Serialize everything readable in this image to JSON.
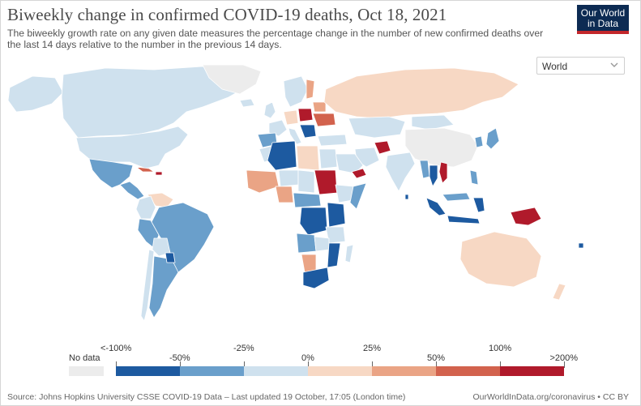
{
  "header": {
    "title": "Biweekly change in confirmed COVID-19 deaths, Oct 18, 2021",
    "subtitle": "The biweekly growth rate on any given date measures the percentage change in the number of new confirmed deaths over the last 14 days relative to the number in the previous 14 days.",
    "logo_line1": "Our World",
    "logo_line2": "in Data"
  },
  "region_select": {
    "value": "World"
  },
  "legend": {
    "no_data_label": "No data",
    "bins": [
      {
        "label": "<-100%",
        "color": "#1d5aa0"
      },
      {
        "label": "-50%",
        "color": "#6a9fcb"
      },
      {
        "label": "-25%",
        "color": "#cfe1ee"
      },
      {
        "label": "0%",
        "color": "#f7d8c4"
      },
      {
        "label": "25%",
        "color": "#eaa485"
      },
      {
        "label": "50%",
        "color": "#d2624d"
      },
      {
        "label": "100%",
        "color": "#b01a2b"
      },
      {
        "label": ">200%"
      }
    ],
    "no_data_color": "#ececec"
  },
  "footer": {
    "source": "Source: Johns Hopkins University CSSE COVID-19 Data – Last updated 19 October, 17:05 (London time)",
    "site": "OurWorldInData.org/coronavirus • CC BY"
  },
  "colors": {
    "strong_decline": "#1d5aa0",
    "decline": "#6a9fcb",
    "slight_decline": "#cfe1ee",
    "slight_increase": "#f7d8c4",
    "increase": "#eaa485",
    "strong_increase": "#d2624d",
    "severe_increase": "#b01a2b",
    "no_data": "#ececec"
  }
}
